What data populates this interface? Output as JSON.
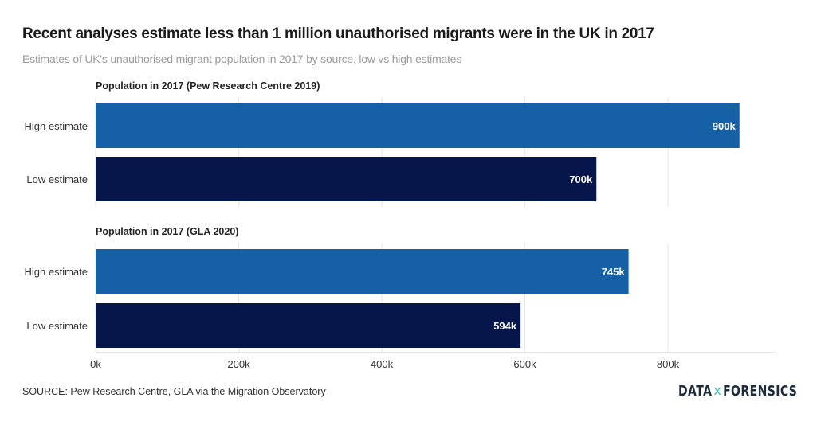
{
  "header": {
    "title": "Recent analyses estimate less than 1 million unauthorised migrants were in the UK in 2017",
    "subtitle": "Estimates of UK's unauthorised migrant population in 2017 by source, low vs high estimates"
  },
  "footer": {
    "source": "SOURCE: Pew Research Centre, GLA via the Migration Observatory",
    "logo_left": "DATA",
    "logo_mark": "×",
    "logo_right": "FORENSICS"
  },
  "colors": {
    "high": "#1660a6",
    "low": "#07164a",
    "label_text": "#ffffff",
    "grid": "#e6e6e6",
    "axis_text": "#333333",
    "category_text": "#333333",
    "panel_title": "#222222",
    "logo_accent": "#2ec4a0"
  },
  "chart_data": {
    "type": "bar",
    "orientation": "horizontal",
    "title": "Recent analyses estimate less than 1 million unauthorised migrants were in the UK in 2017",
    "subtitle": "Estimates of UK's unauthorised migrant population in 2017 by source, low vs high estimates",
    "xlabel": "",
    "ylabel": "",
    "xlim": [
      0,
      950000
    ],
    "x_ticks": [
      0,
      200000,
      400000,
      600000,
      800000
    ],
    "x_tick_labels": [
      "0k",
      "200k",
      "400k",
      "600k",
      "800k"
    ],
    "grid": true,
    "legend": "none",
    "panels": [
      {
        "title": "Population in 2017 (Pew Research Centre 2019)",
        "categories": [
          "High estimate",
          "Low estimate"
        ],
        "values": [
          900000,
          700000
        ],
        "labels": [
          "900k",
          "700k"
        ],
        "series_keys": [
          "high",
          "low"
        ]
      },
      {
        "title": "Population in 2017 (GLA 2020)",
        "categories": [
          "High estimate",
          "Low estimate"
        ],
        "values": [
          745000,
          594000
        ],
        "labels": [
          "745k",
          "594k"
        ],
        "series_keys": [
          "high",
          "low"
        ]
      }
    ],
    "source": "SOURCE: Pew Research Centre, GLA via the Migration Observatory"
  }
}
